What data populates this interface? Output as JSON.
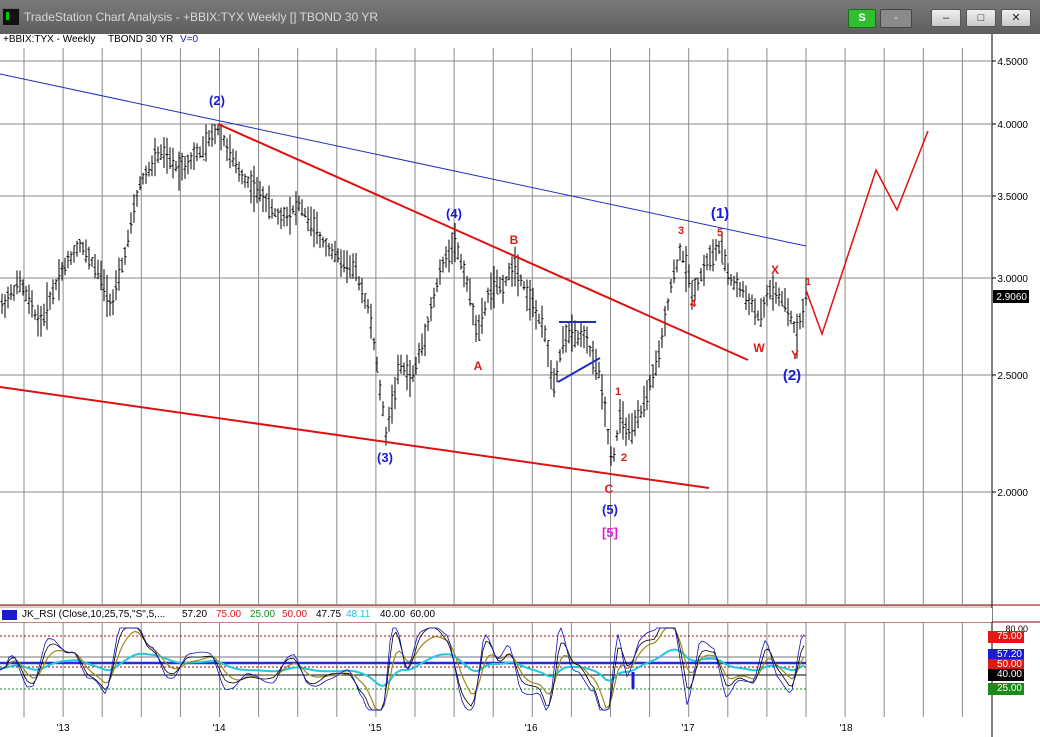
{
  "window": {
    "title": "TradeStation Chart Analysis - +BBIX:TYX Weekly [] TBOND 30 YR",
    "s_button": "S",
    "dash_button": "-",
    "minimize": "–",
    "restore": "□",
    "close": "✕"
  },
  "symbol_bar": {
    "symbol": "+BBIX:TYX - Weekly",
    "description": "TBOND 30 YR",
    "volume": "V=0"
  },
  "price_axis": {
    "ticks": [
      "4.5000",
      "4.0000",
      "3.5000",
      "3.0000",
      "2.5000",
      "2.0000"
    ],
    "current_price": "2.9060"
  },
  "time_axis": {
    "ticks": [
      "'13",
      "'14",
      "'15",
      "'16",
      "'17",
      "'18"
    ]
  },
  "wave_labels": {
    "w2_major": "(2)",
    "w3_major": "(3)",
    "w4_major": "(4)",
    "w5_major": "(5)",
    "w5_bracket": "[5]",
    "a": "A",
    "b": "B",
    "c": "C",
    "sub1": "1",
    "sub2": "2",
    "sub3": "3",
    "sub4": "4",
    "sub5": "5",
    "w1_new": "(1)",
    "w": "W",
    "x": "X",
    "y": "Y",
    "w2_new": "(2)",
    "one_small": "1"
  },
  "indicator": {
    "name": "JK_RSI (Close,10,25,75,\"S\",5,...",
    "v1": "57.20",
    "v2": "75.00",
    "v3": "25.00",
    "v4": "50.00",
    "v5": "47.75",
    "v6": "48.11",
    "v7": "40.00",
    "v8": "60.00",
    "axis_ticks": [
      "80.00"
    ],
    "tags": {
      "t75": "75.00",
      "t57": "57.20",
      "t50": "50.00",
      "t40": "40.00",
      "t25": "25.00"
    }
  },
  "colors": {
    "blue_label": "#1a1ad6",
    "red_label": "#e01818",
    "magenta_label": "#e020d0",
    "price_bar": "#000000",
    "trendline_red": "#e01010",
    "trendline_blue": "#2030c0"
  }
}
